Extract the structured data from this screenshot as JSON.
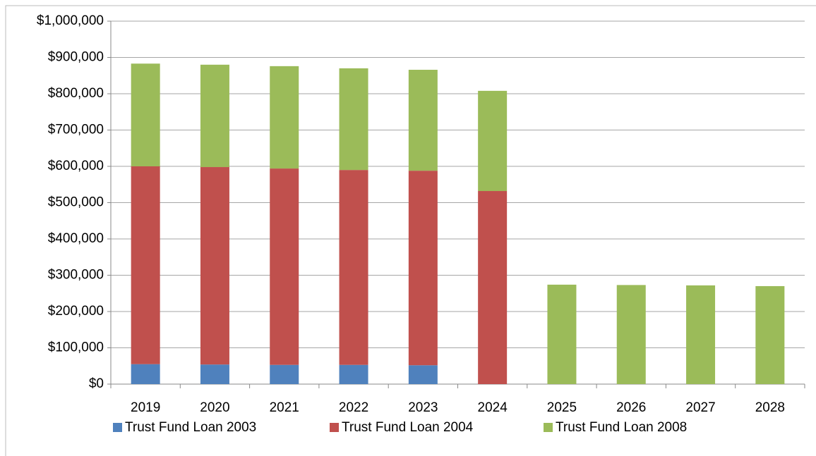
{
  "chart_data": {
    "type": "stacked_bar",
    "categories": [
      "2019",
      "2020",
      "2021",
      "2022",
      "2023",
      "2024",
      "2025",
      "2026",
      "2027",
      "2028"
    ],
    "series": [
      {
        "name": "Trust Fund Loan 2003",
        "color": "#4f81bd",
        "values": [
          55000,
          54000,
          53000,
          53000,
          52000,
          0,
          0,
          0,
          0,
          0
        ]
      },
      {
        "name": "Trust Fund Loan 2004",
        "color": "#c0504d",
        "values": [
          545000,
          544000,
          541000,
          537000,
          536000,
          532000,
          0,
          0,
          0,
          0
        ]
      },
      {
        "name": "Trust Fund Loan 2008",
        "color": "#9bbb59",
        "values": [
          283000,
          282000,
          282000,
          280000,
          278000,
          276000,
          274000,
          273000,
          272000,
          270000
        ]
      }
    ],
    "ylim": [
      0,
      1000000
    ],
    "yticks": [
      {
        "value": 0,
        "label": "$0"
      },
      {
        "value": 100000,
        "label": "$100,000"
      },
      {
        "value": 200000,
        "label": "$200,000"
      },
      {
        "value": 300000,
        "label": "$300,000"
      },
      {
        "value": 400000,
        "label": "$400,000"
      },
      {
        "value": 500000,
        "label": "$500,000"
      },
      {
        "value": 600000,
        "label": "$600,000"
      },
      {
        "value": 700000,
        "label": "$700,000"
      },
      {
        "value": 800000,
        "label": "$800,000"
      },
      {
        "value": 900000,
        "label": "$900,000"
      },
      {
        "value": 1000000,
        "label": "$1,000,000"
      }
    ],
    "grid": true,
    "legend": "bottom"
  }
}
